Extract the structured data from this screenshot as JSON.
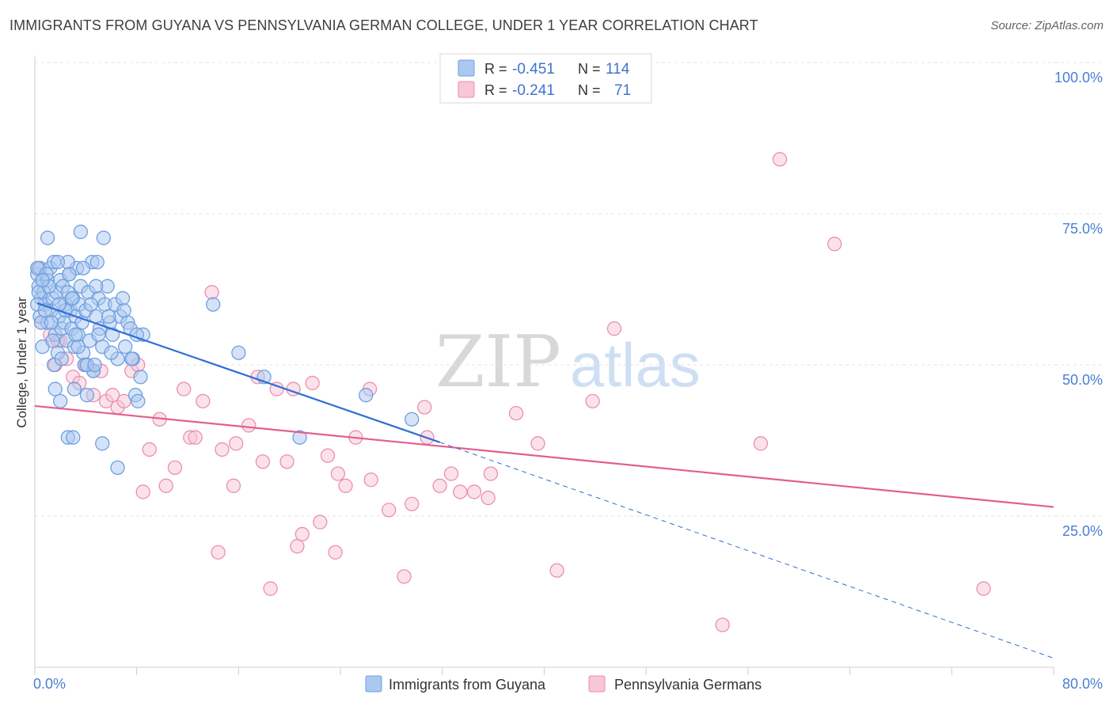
{
  "title": "IMMIGRANTS FROM GUYANA VS PENNSYLVANIA GERMAN COLLEGE, UNDER 1 YEAR CORRELATION CHART",
  "source": "Source: ZipAtlas.com",
  "watermark": {
    "zip": "ZIP",
    "atlas": "atlas"
  },
  "colors": {
    "blue_fill": "#aac8f0",
    "blue_stroke": "#6f9fe0",
    "blue_line": "#2f6fd4",
    "pink_fill": "#f8c6d6",
    "pink_stroke": "#eb8fb0",
    "pink_line": "#e35f8e",
    "axis_text": "#4a7fd4",
    "grid": "#e3e3e3"
  },
  "legend": {
    "rows": [
      {
        "r_label": "R =",
        "r_value": "-0.451",
        "n_label": "N =",
        "n_value": "114"
      },
      {
        "r_label": "R =",
        "r_value": "-0.241",
        "n_label": "N =",
        "n_value": "71"
      }
    ]
  },
  "bottom_legend": [
    "Immigrants from Guyana",
    "Pennsylvania Germans"
  ],
  "chart_data": {
    "type": "scatter",
    "xlabel": "",
    "ylabel": "College, Under 1 year",
    "xlim": [
      0,
      80
    ],
    "ylim": [
      0,
      100
    ],
    "x_tick_labels": [
      "0.0%",
      "80.0%"
    ],
    "y_tick_labels": [
      "100.0%",
      "75.0%",
      "50.0%",
      "25.0%"
    ],
    "y_tick_values": [
      100,
      75,
      50,
      25
    ],
    "grid": true,
    "series": [
      {
        "name": "Immigrants from Guyana",
        "r": -0.451,
        "n": 114,
        "trend": {
          "x": [
            0.2,
            31.8
          ],
          "y": [
            60.2,
            37.2
          ]
        },
        "trend_dashed": {
          "x": [
            31.8,
            80
          ],
          "y": [
            37.2,
            1.5
          ]
        },
        "points": [
          [
            0.2,
            65
          ],
          [
            0.3,
            63
          ],
          [
            0.4,
            66
          ],
          [
            0.5,
            61
          ],
          [
            0.6,
            64
          ],
          [
            0.4,
            58
          ],
          [
            0.7,
            62
          ],
          [
            0.8,
            60
          ],
          [
            1.0,
            57
          ],
          [
            1.0,
            64
          ],
          [
            1.2,
            66
          ],
          [
            1.3,
            59
          ],
          [
            1.4,
            61
          ],
          [
            1.5,
            67
          ],
          [
            1.6,
            55
          ],
          [
            1.7,
            62
          ],
          [
            1.8,
            52
          ],
          [
            1.9,
            58
          ],
          [
            2.0,
            64
          ],
          [
            2.1,
            56
          ],
          [
            2.2,
            63
          ],
          [
            2.3,
            57
          ],
          [
            2.4,
            60
          ],
          [
            2.5,
            54
          ],
          [
            2.6,
            62
          ],
          [
            2.7,
            65
          ],
          [
            2.8,
            59
          ],
          [
            2.9,
            56
          ],
          [
            3.0,
            61
          ],
          [
            3.1,
            53
          ],
          [
            3.2,
            58
          ],
          [
            3.3,
            66
          ],
          [
            3.4,
            55
          ],
          [
            3.5,
            60
          ],
          [
            3.6,
            63
          ],
          [
            3.7,
            57
          ],
          [
            3.8,
            52
          ],
          [
            3.9,
            50
          ],
          [
            4.0,
            59
          ],
          [
            4.2,
            62
          ],
          [
            4.3,
            54
          ],
          [
            4.5,
            67
          ],
          [
            4.6,
            49
          ],
          [
            4.8,
            58
          ],
          [
            5.0,
            61
          ],
          [
            5.1,
            56
          ],
          [
            5.3,
            53
          ],
          [
            5.5,
            60
          ],
          [
            5.7,
            63
          ],
          [
            5.9,
            57
          ],
          [
            6.1,
            55
          ],
          [
            6.3,
            60
          ],
          [
            6.5,
            51
          ],
          [
            6.7,
            58
          ],
          [
            6.9,
            61
          ],
          [
            7.1,
            53
          ],
          [
            7.3,
            57
          ],
          [
            7.5,
            56
          ],
          [
            7.7,
            51
          ],
          [
            7.9,
            45
          ],
          [
            8.1,
            44
          ],
          [
            8.3,
            48
          ],
          [
            8.5,
            55
          ],
          [
            1.0,
            71
          ],
          [
            1.5,
            50
          ],
          [
            1.6,
            46
          ],
          [
            2.6,
            38
          ],
          [
            3.0,
            38
          ],
          [
            3.1,
            46
          ],
          [
            4.1,
            45
          ],
          [
            5.3,
            37
          ],
          [
            6.5,
            33
          ],
          [
            3.6,
            72
          ],
          [
            5.4,
            71
          ],
          [
            4.9,
            67
          ],
          [
            4.8,
            63
          ],
          [
            4.6,
            49
          ],
          [
            4.1,
            50
          ],
          [
            2.6,
            67
          ],
          [
            2.0,
            44
          ],
          [
            14.0,
            60
          ],
          [
            16.0,
            52
          ],
          [
            18.0,
            48
          ],
          [
            20.8,
            38
          ],
          [
            26.0,
            45
          ],
          [
            29.6,
            41
          ],
          [
            0.2,
            66
          ],
          [
            0.3,
            62
          ],
          [
            0.2,
            60
          ],
          [
            0.5,
            57
          ],
          [
            0.6,
            53
          ],
          [
            0.8,
            59
          ],
          [
            1.1,
            63
          ],
          [
            1.3,
            57
          ],
          [
            1.8,
            67
          ],
          [
            2.1,
            51
          ],
          [
            2.4,
            59
          ],
          [
            2.9,
            61
          ],
          [
            3.4,
            53
          ],
          [
            3.8,
            66
          ],
          [
            4.4,
            60
          ],
          [
            5.0,
            55
          ],
          [
            5.8,
            58
          ],
          [
            6.0,
            52
          ],
          [
            7.0,
            59
          ],
          [
            7.6,
            51
          ],
          [
            8.0,
            55
          ],
          [
            0.9,
            65
          ],
          [
            1.4,
            54
          ],
          [
            2.7,
            65
          ],
          [
            3.2,
            55
          ],
          [
            0.6,
            64
          ],
          [
            1.9,
            60
          ],
          [
            4.7,
            50
          ]
        ]
      },
      {
        "name": "Pennsylvania Germans",
        "r": -0.241,
        "n": 71,
        "trend": {
          "x": [
            0,
            80
          ],
          "y": [
            43.2,
            26.5
          ]
        },
        "points": [
          [
            0.3,
            66
          ],
          [
            0.5,
            57
          ],
          [
            1.2,
            55
          ],
          [
            1.6,
            50
          ],
          [
            2.0,
            54
          ],
          [
            2.5,
            51
          ],
          [
            3.0,
            48
          ],
          [
            3.5,
            47
          ],
          [
            4.0,
            50
          ],
          [
            4.6,
            45
          ],
          [
            5.2,
            49
          ],
          [
            5.6,
            44
          ],
          [
            6.1,
            45
          ],
          [
            6.5,
            43
          ],
          [
            7.0,
            44
          ],
          [
            7.6,
            49
          ],
          [
            8.1,
            50
          ],
          [
            8.5,
            29
          ],
          [
            9.0,
            36
          ],
          [
            9.8,
            41
          ],
          [
            10.3,
            30
          ],
          [
            11.0,
            33
          ],
          [
            11.7,
            46
          ],
          [
            12.2,
            38
          ],
          [
            12.6,
            38
          ],
          [
            13.2,
            44
          ],
          [
            13.9,
            62
          ],
          [
            14.4,
            19
          ],
          [
            14.7,
            36
          ],
          [
            15.6,
            30
          ],
          [
            15.8,
            37
          ],
          [
            16.8,
            40
          ],
          [
            17.5,
            48
          ],
          [
            17.9,
            34
          ],
          [
            18.5,
            13
          ],
          [
            19.0,
            46
          ],
          [
            19.8,
            34
          ],
          [
            20.3,
            46
          ],
          [
            20.6,
            20
          ],
          [
            21.0,
            22
          ],
          [
            21.8,
            47
          ],
          [
            22.4,
            24
          ],
          [
            23.0,
            35
          ],
          [
            23.6,
            19
          ],
          [
            23.8,
            32
          ],
          [
            24.4,
            30
          ],
          [
            25.2,
            38
          ],
          [
            26.3,
            46
          ],
          [
            26.4,
            31
          ],
          [
            27.8,
            26
          ],
          [
            29.0,
            15
          ],
          [
            29.6,
            27
          ],
          [
            30.6,
            43
          ],
          [
            30.8,
            38
          ],
          [
            31.8,
            30
          ],
          [
            32.7,
            32
          ],
          [
            33.4,
            29
          ],
          [
            34.5,
            29
          ],
          [
            35.6,
            28
          ],
          [
            35.8,
            32
          ],
          [
            37.8,
            42
          ],
          [
            39.5,
            37
          ],
          [
            41.0,
            16
          ],
          [
            43.8,
            44
          ],
          [
            45.5,
            56
          ],
          [
            54.0,
            7
          ],
          [
            57.0,
            37
          ],
          [
            58.5,
            84
          ],
          [
            62.8,
            70
          ],
          [
            74.5,
            13
          ],
          [
            1.8,
            54
          ]
        ]
      }
    ]
  }
}
